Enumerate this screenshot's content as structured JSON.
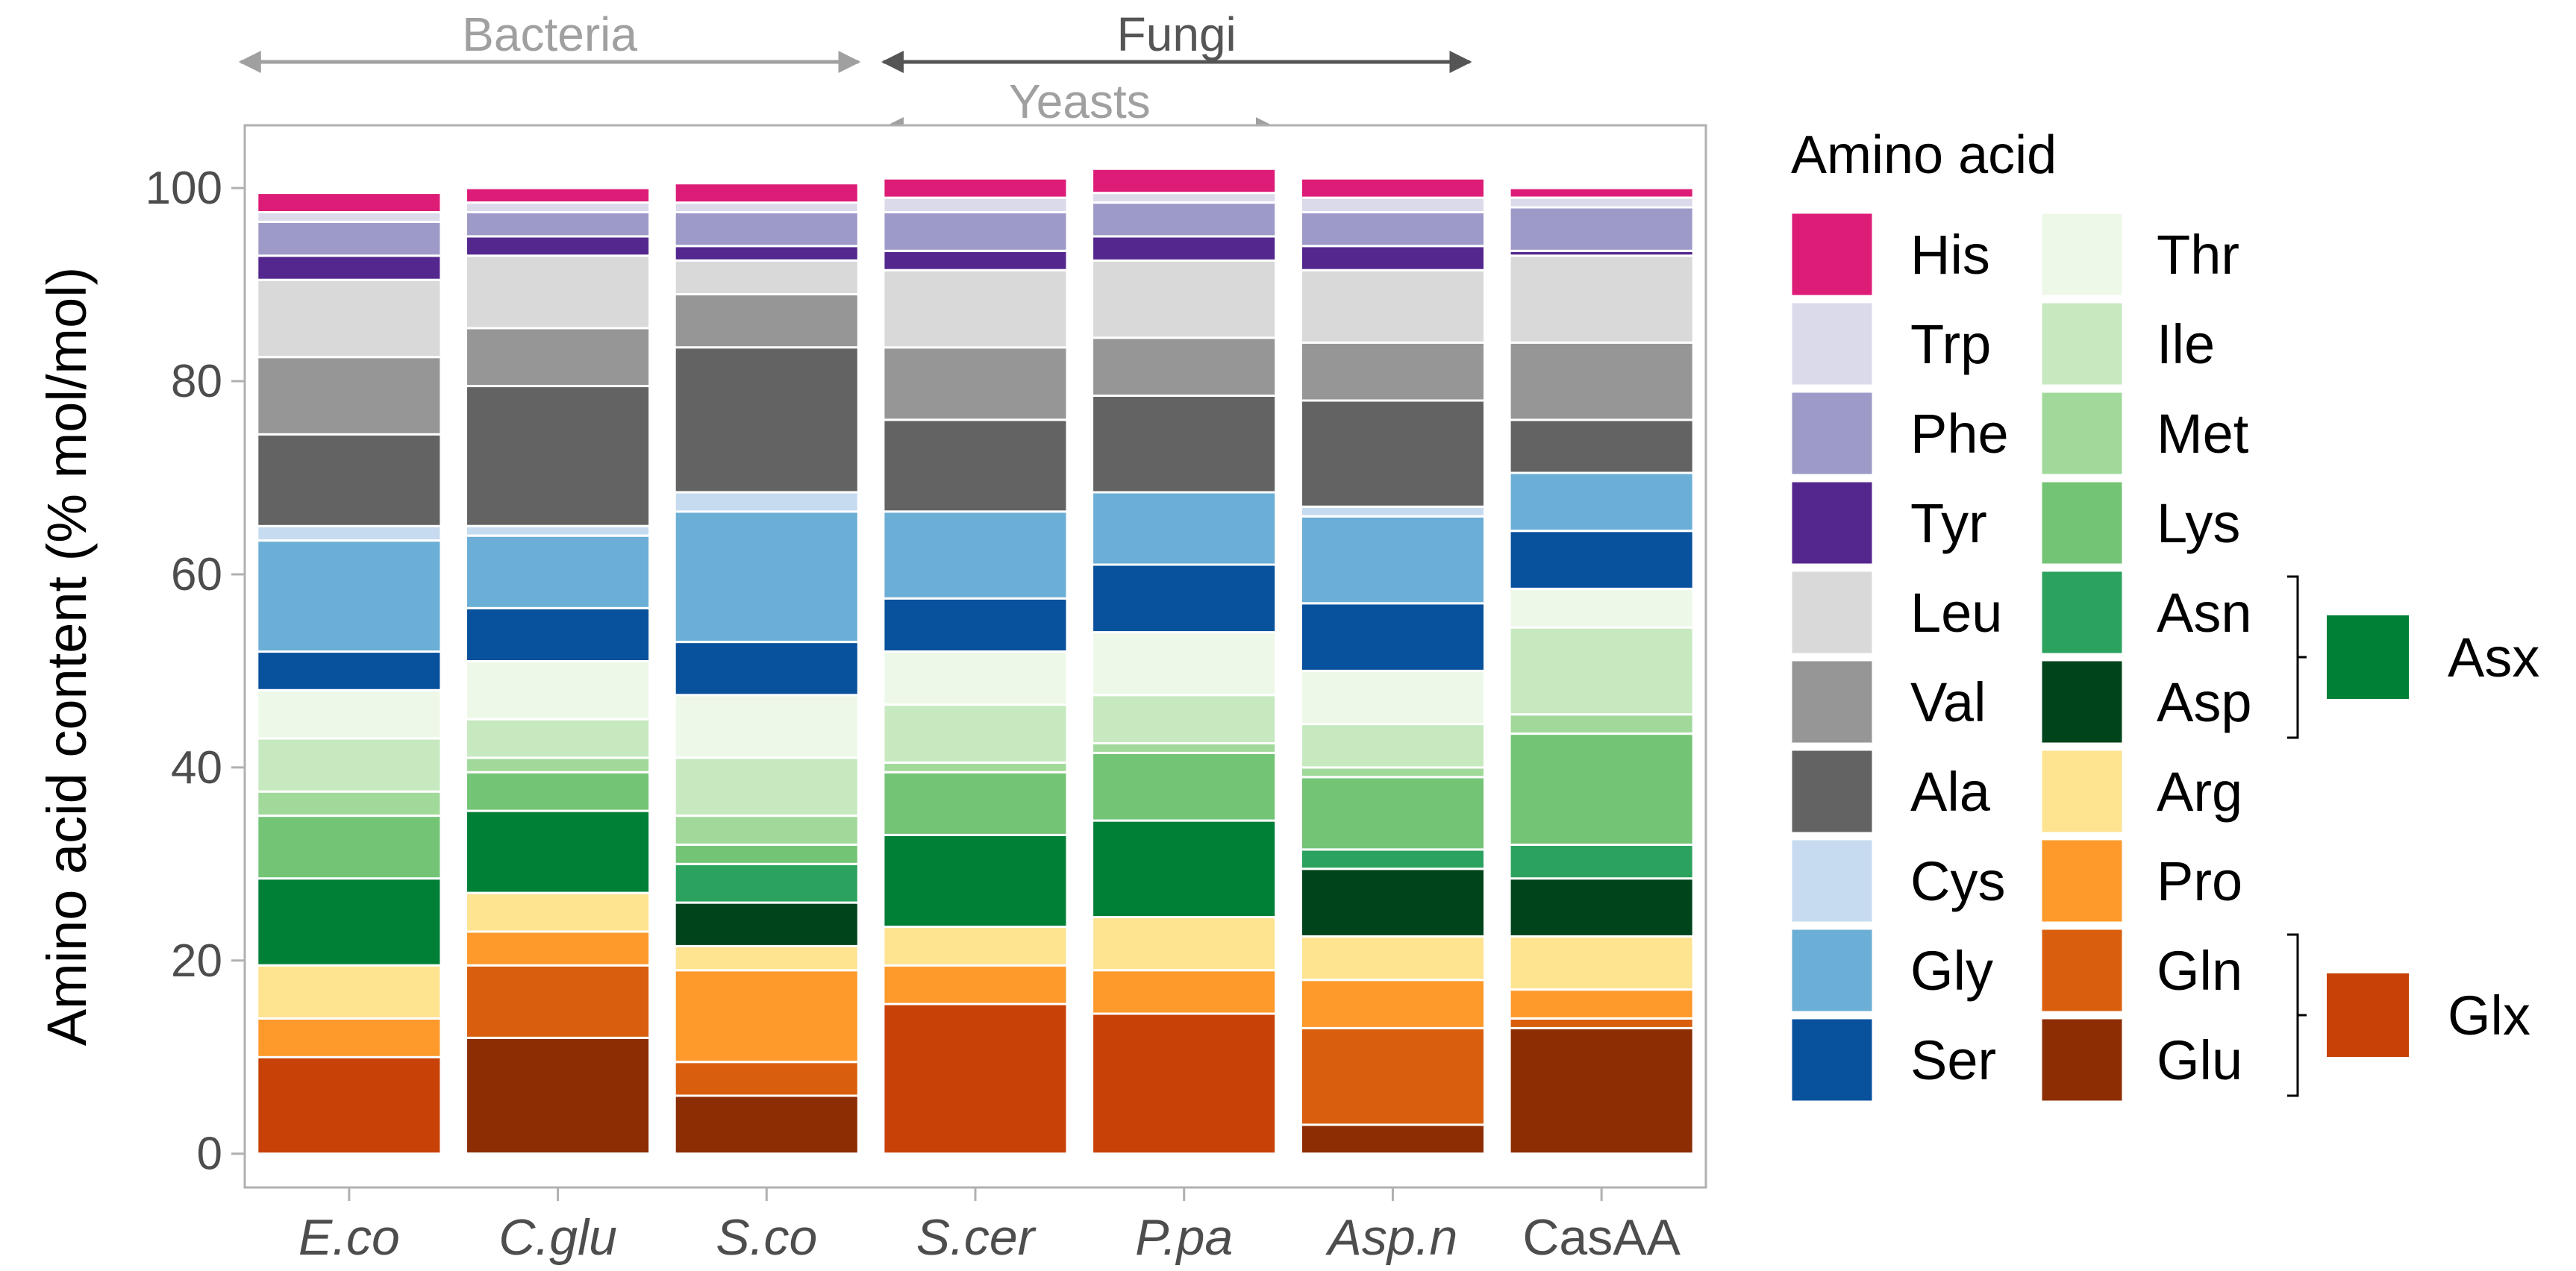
{
  "chart_data": {
    "type": "bar",
    "stacked": true,
    "ylabel": "Amino acid content (% mol/mol)",
    "xlabel": "",
    "ylim": [
      -3.5,
      106.5
    ],
    "yticks": [
      0,
      20,
      40,
      60,
      80,
      100
    ],
    "categories": [
      "E.co",
      "C.glu",
      "S.co",
      "S.cer",
      "P.pa",
      "Asp.n",
      "CasAA"
    ],
    "italic_categories": [
      "E.co",
      "C.glu",
      "S.co",
      "S.cer",
      "P.pa",
      "Asp.n"
    ],
    "group_annotations": [
      {
        "label": "Bacteria",
        "from": "E.co",
        "to": "S.co",
        "color": "#a0a0a0"
      },
      {
        "label": "Fungi",
        "from": "S.cer",
        "to": "Asp.n",
        "color": "#555555"
      },
      {
        "label": "Yeasts",
        "from": "S.cer",
        "to": "P.pa",
        "color": "#a0a0a0"
      }
    ],
    "series": [
      {
        "name": "Glu",
        "color": "#8c2d04",
        "values": [
          0,
          12,
          6,
          0,
          0,
          3,
          13
        ]
      },
      {
        "name": "Glx",
        "color": "#c84106",
        "values": [
          10,
          0,
          0,
          15.5,
          14.5,
          0,
          0
        ]
      },
      {
        "name": "Gln",
        "color": "#d95f0e",
        "values": [
          0,
          7.5,
          3.5,
          0,
          0,
          10,
          1
        ]
      },
      {
        "name": "Pro",
        "color": "#fd9a2b",
        "values": [
          4,
          3.5,
          9.5,
          4,
          4.5,
          5,
          3
        ]
      },
      {
        "name": "Arg",
        "color": "#fee391",
        "values": [
          5.5,
          4,
          2.5,
          4,
          5.5,
          4.5,
          5.5
        ]
      },
      {
        "name": "Asp",
        "color": "#00441b",
        "values": [
          0,
          0,
          4.5,
          0,
          0,
          7,
          6
        ]
      },
      {
        "name": "Asx",
        "color": "#007f37",
        "values": [
          9,
          8.5,
          0,
          9.5,
          10,
          0,
          0
        ]
      },
      {
        "name": "Asn",
        "color": "#2ca25f",
        "values": [
          0,
          0,
          4,
          0,
          0,
          2,
          3.5
        ]
      },
      {
        "name": "Lys",
        "color": "#74c476",
        "values": [
          6.5,
          4,
          2,
          6.5,
          7,
          7.5,
          11.5
        ]
      },
      {
        "name": "Met",
        "color": "#a1d99b",
        "values": [
          2.5,
          1.5,
          3,
          1,
          1,
          1,
          2
        ]
      },
      {
        "name": "Ile",
        "color": "#c7e9c0",
        "values": [
          5.5,
          4,
          6,
          6,
          5,
          4.5,
          9
        ]
      },
      {
        "name": "Thr",
        "color": "#edf8e9",
        "values": [
          5,
          6,
          6.5,
          5.5,
          6.5,
          5.5,
          4
        ]
      },
      {
        "name": "Ser",
        "color": "#08519c",
        "values": [
          4,
          5.5,
          5.5,
          5.5,
          7,
          7,
          6
        ]
      },
      {
        "name": "Gly",
        "color": "#6baed6",
        "values": [
          11.5,
          7.5,
          13.5,
          9,
          7.5,
          9,
          6
        ]
      },
      {
        "name": "Cys",
        "color": "#c6dbef",
        "values": [
          1.5,
          1,
          2,
          0,
          0,
          1,
          0
        ]
      },
      {
        "name": "Ala",
        "color": "#636363",
        "values": [
          9.5,
          14.5,
          15,
          9.5,
          10,
          11,
          5.5
        ]
      },
      {
        "name": "Val",
        "color": "#969696",
        "values": [
          8,
          6,
          5.5,
          7.5,
          6,
          6,
          8
        ]
      },
      {
        "name": "Leu",
        "color": "#d9d9d9",
        "values": [
          8,
          7.5,
          3.5,
          8,
          8,
          7.5,
          9
        ]
      },
      {
        "name": "Tyr",
        "color": "#54278f",
        "values": [
          2.5,
          2,
          1.5,
          2,
          2.5,
          2.5,
          0.5
        ]
      },
      {
        "name": "Phe",
        "color": "#9e9ac8",
        "values": [
          3.5,
          2.5,
          3.5,
          4,
          3.5,
          3.5,
          4.5
        ]
      },
      {
        "name": "Trp",
        "color": "#dadaeb",
        "values": [
          1,
          1,
          1,
          1.5,
          1,
          1.5,
          1
        ]
      },
      {
        "name": "His",
        "color": "#dd1c77",
        "values": [
          2,
          1.5,
          2,
          2,
          2.5,
          2,
          1
        ]
      }
    ],
    "legend": {
      "position": "right",
      "title": "Amino acid",
      "column1": [
        "His",
        "Trp",
        "Phe",
        "Tyr",
        "Leu",
        "Val",
        "Ala",
        "Cys",
        "Gly",
        "Ser"
      ],
      "column2": [
        "Thr",
        "Ile",
        "Met",
        "Lys",
        "Asn",
        "Asp",
        "Arg",
        "Pro",
        "Gln",
        "Glu"
      ],
      "summaries": [
        {
          "label": "Asx",
          "color": "#007f37",
          "brackets": [
            "Asn",
            "Asp"
          ]
        },
        {
          "label": "Glx",
          "color": "#c84106",
          "brackets": [
            "Gln",
            "Glu"
          ]
        }
      ]
    }
  }
}
